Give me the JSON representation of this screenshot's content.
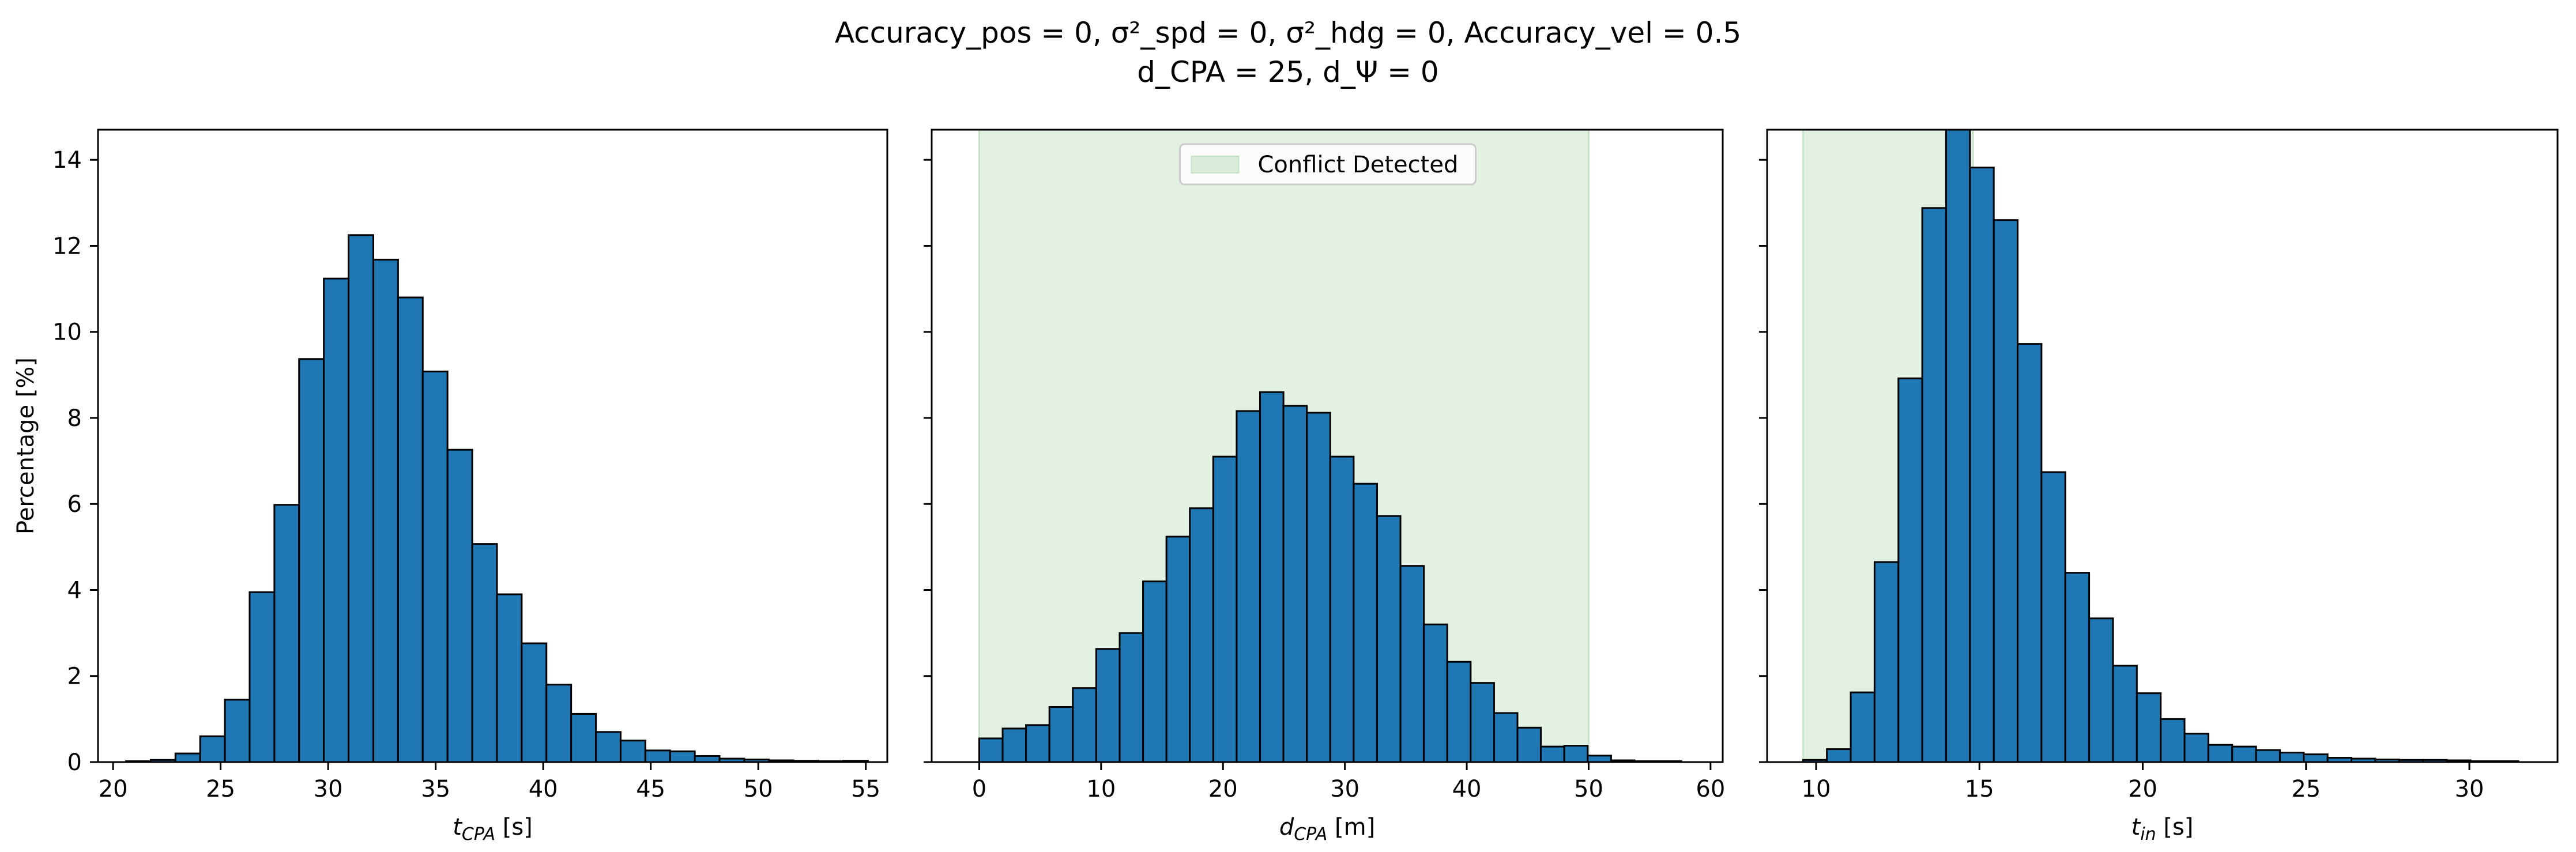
{
  "figure": {
    "title_line1": "Accuracy_pos = 0, σ²_spd = 0, σ²_hdg = 0, Accuracy_vel = 0.5",
    "title_line2": "d_CPA = 25, d_Ψ = 0"
  },
  "colors": {
    "bar_fill": "#1f77b4",
    "bar_edge": "#000000",
    "shade": "#c7e3c7",
    "legend_patch": "#d9ecd9"
  },
  "chart_data": [
    {
      "type": "bar",
      "panel": "t_cpa",
      "xlabel_main": "t",
      "xlabel_sub": "CPA",
      "xlabel_unit": " [s]",
      "ylabel": "Percentage [%]",
      "xlim": [
        19.3,
        56.0
      ],
      "ylim": [
        0,
        14.7
      ],
      "xticks": [
        20,
        25,
        30,
        35,
        40,
        45,
        50,
        55
      ],
      "yticks": [
        0,
        2,
        4,
        6,
        8,
        10,
        12,
        14
      ],
      "bin_start": 20.6,
      "bin_width": 1.15,
      "values": [
        0.02,
        0.05,
        0.2,
        0.6,
        1.45,
        3.95,
        5.98,
        9.37,
        11.24,
        12.25,
        11.68,
        10.8,
        9.08,
        7.26,
        5.07,
        3.9,
        2.76,
        1.8,
        1.12,
        0.7,
        0.5,
        0.27,
        0.25,
        0.14,
        0.08,
        0.06,
        0.04,
        0.03,
        0.02,
        0.03
      ]
    },
    {
      "type": "bar",
      "panel": "d_cpa",
      "xlabel_main": "d",
      "xlabel_sub": "CPA",
      "xlabel_unit": " [m]",
      "xlim": [
        -3.9,
        61.0
      ],
      "ylim": [
        0,
        14.7
      ],
      "xticks": [
        0,
        10,
        20,
        30,
        40,
        50,
        60
      ],
      "yticks": [
        0,
        2,
        4,
        6,
        8,
        10,
        12,
        14
      ],
      "bin_start": 0.0,
      "bin_width": 1.92,
      "values": [
        0.55,
        0.78,
        0.86,
        1.28,
        1.72,
        2.63,
        3.0,
        4.2,
        5.24,
        5.9,
        7.1,
        8.16,
        8.6,
        8.28,
        8.12,
        7.1,
        6.47,
        5.72,
        4.56,
        3.2,
        2.33,
        1.84,
        1.14,
        0.8,
        0.36,
        0.38,
        0.15,
        0.04,
        0.02,
        0.02
      ],
      "shade_range": [
        0,
        50
      ],
      "legend": [
        "Conflict Detected"
      ]
    },
    {
      "type": "bar",
      "panel": "t_in",
      "xlabel_main": "t",
      "xlabel_sub": "in",
      "xlabel_unit": " [s]",
      "xlim": [
        8.5,
        32.7
      ],
      "ylim": [
        0,
        14.7
      ],
      "xticks": [
        10,
        15,
        20,
        25,
        30
      ],
      "yticks": [
        0,
        2,
        4,
        6,
        8,
        10,
        12,
        14
      ],
      "bin_start": 9.6,
      "bin_width": 0.73,
      "values": [
        0.05,
        0.3,
        1.62,
        4.65,
        8.92,
        12.88,
        14.75,
        13.82,
        12.6,
        9.72,
        6.74,
        4.4,
        3.34,
        2.24,
        1.6,
        1.0,
        0.66,
        0.4,
        0.36,
        0.28,
        0.22,
        0.18,
        0.1,
        0.08,
        0.06,
        0.05,
        0.05,
        0.04,
        0.02,
        0.02
      ],
      "shade_range": [
        9.6,
        14.8
      ]
    }
  ]
}
